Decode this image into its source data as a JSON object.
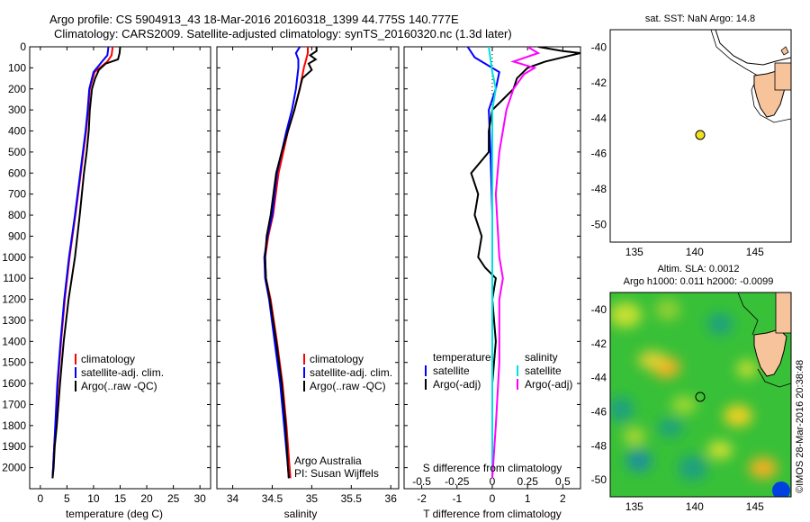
{
  "header": {
    "line1": "Argo profile: CS 5904913_43 18-Mar-2016 20160318_1399 44.775S 140.777E",
    "line2": "Climatology: CARS2009. Satellite-adjusted climatology: synTS_20160320.nc (1.3d later)"
  },
  "colors": {
    "climatology": "#ff0000",
    "satellite": "#0000ff",
    "argo": "#000000",
    "sat_salinity": "#00e0e0",
    "argo_salinity": "#ff00ff",
    "land": "#f7c39a",
    "marker": "#f0e020"
  },
  "chart_data": [
    {
      "type": "line",
      "panel": "temperature",
      "xlabel": "temperature (deg C)",
      "ylabel": "",
      "xlim": [
        -2,
        32
      ],
      "ylim": [
        2100,
        0
      ],
      "xticks": [
        0,
        5,
        10,
        15,
        20,
        25,
        30
      ],
      "yticks": [
        0,
        100,
        200,
        300,
        400,
        500,
        600,
        700,
        800,
        900,
        1000,
        1100,
        1200,
        1300,
        1400,
        1500,
        1600,
        1700,
        1800,
        1900,
        2000
      ],
      "legend": [
        "climatology",
        "satellite-adj. clim.",
        "Argo(..raw -QC)"
      ],
      "series": [
        {
          "name": "climatology",
          "color": "#ff0000",
          "x": [
            13.6,
            13.4,
            12.6,
            10.2,
            9.3,
            9.0,
            8.6,
            8.1,
            7.6,
            6.6,
            5.5,
            4.6,
            3.9,
            3.3,
            2.9,
            2.6,
            2.4,
            2.3
          ],
          "y": [
            0,
            40,
            70,
            120,
            200,
            300,
            400,
            500,
            600,
            800,
            1000,
            1200,
            1400,
            1600,
            1800,
            1900,
            2000,
            2050
          ]
        },
        {
          "name": "satellite-adj. clim.",
          "color": "#0000ff",
          "x": [
            12.8,
            12.6,
            11.6,
            10.0,
            9.2,
            8.9,
            8.5,
            8.0,
            7.5,
            6.5,
            5.4,
            4.5,
            3.8,
            3.2,
            2.8,
            2.6,
            2.4,
            2.3
          ],
          "y": [
            0,
            40,
            70,
            120,
            200,
            300,
            400,
            500,
            600,
            800,
            1000,
            1200,
            1400,
            1600,
            1800,
            1900,
            2000,
            2050
          ]
        },
        {
          "name": "Argo(..raw -QC)",
          "color": "#000000",
          "x": [
            15.0,
            14.9,
            14.6,
            12.3,
            11.0,
            10.3,
            9.7,
            9.3,
            9.1,
            8.7,
            8.2,
            7.4,
            6.5,
            5.3,
            4.4,
            3.7,
            3.1,
            2.7,
            2.5,
            2.3
          ],
          "y": [
            0,
            30,
            60,
            80,
            110,
            150,
            200,
            300,
            400,
            500,
            600,
            800,
            1000,
            1200,
            1400,
            1600,
            1800,
            1900,
            2000,
            2050
          ]
        }
      ]
    },
    {
      "type": "line",
      "panel": "salinity",
      "xlabel": "salinity",
      "xlim": [
        33.8,
        36.1
      ],
      "ylim": [
        2100,
        0
      ],
      "xticks": [
        34,
        34.5,
        35,
        35.5,
        36
      ],
      "legend": [
        "climatology",
        "satellite-adj. clim.",
        "Argo(..raw -QC)"
      ],
      "annotation": [
        "Argo Australia",
        "PI: Susan Wijffels"
      ],
      "series": [
        {
          "name": "climatology",
          "color": "#ff0000",
          "x": [
            34.95,
            34.95,
            34.93,
            34.9,
            34.85,
            34.78,
            34.7,
            34.64,
            34.58,
            34.51,
            34.45,
            34.41,
            34.42,
            34.48,
            34.56,
            34.63,
            34.68,
            34.72,
            34.73
          ],
          "y": [
            0,
            30,
            60,
            100,
            200,
            300,
            400,
            500,
            600,
            800,
            900,
            1000,
            1100,
            1200,
            1400,
            1600,
            1800,
            2000,
            2050
          ]
        },
        {
          "name": "satellite-adj. clim.",
          "color": "#0000ff",
          "x": [
            34.85,
            34.8,
            34.83,
            34.83,
            34.8,
            34.75,
            34.68,
            34.62,
            34.56,
            34.5,
            34.44,
            34.4,
            34.41,
            34.46,
            34.53,
            34.6,
            34.65,
            34.7,
            34.71
          ],
          "y": [
            0,
            30,
            60,
            100,
            200,
            300,
            400,
            500,
            600,
            800,
            900,
            1000,
            1100,
            1200,
            1400,
            1600,
            1800,
            2000,
            2050
          ]
        },
        {
          "name": "Argo(..raw -QC)",
          "color": "#000000",
          "x": [
            35.06,
            35.06,
            34.98,
            35.05,
            34.96,
            35.0,
            34.88,
            34.78,
            34.7,
            34.62,
            34.55,
            34.48,
            34.43,
            34.41,
            34.42,
            34.47,
            34.55,
            34.62,
            34.67,
            34.7,
            34.71
          ],
          "y": [
            0,
            20,
            40,
            60,
            80,
            110,
            150,
            300,
            400,
            500,
            600,
            800,
            900,
            1000,
            1100,
            1200,
            1400,
            1600,
            1800,
            2000,
            2050
          ]
        }
      ]
    },
    {
      "type": "line",
      "panel": "difference",
      "xlabel": "T difference from climatology",
      "toplabel": "S difference from climatology",
      "xlim": [
        -2.5,
        2.5
      ],
      "ylim": [
        2100,
        0
      ],
      "xticks": [
        -2,
        -1,
        0,
        1,
        2
      ],
      "topticks": [
        "-0.5",
        "-0.25",
        "0",
        "0.25",
        "0.5"
      ],
      "legend_left": [
        "temperature",
        "satellite",
        "Argo(-adj)"
      ],
      "legend_right": [
        "salinity",
        "satellite",
        "Argo(-adj)"
      ],
      "series": [
        {
          "name": "T satellite",
          "color": "#0000ff",
          "x": [
            -0.7,
            -0.5,
            0.2,
            0.1,
            -0.1,
            -0.05,
            0.0,
            0.0,
            0.0,
            0.0
          ],
          "y": [
            0,
            50,
            120,
            200,
            300,
            500,
            800,
            1200,
            1600,
            2050
          ]
        },
        {
          "name": "T Argo(-adj)",
          "color": "#000000",
          "x": [
            1.3,
            2.0,
            2.5,
            1.5,
            1.0,
            0.7,
            0.6,
            0.3,
            0.0,
            -0.1,
            -0.1,
            -0.6,
            -0.4,
            -0.5,
            -0.3,
            -0.4,
            -0.2,
            0.1,
            0.0,
            0.1,
            0.0,
            0.0
          ],
          "y": [
            0,
            20,
            30,
            70,
            100,
            150,
            200,
            250,
            300,
            400,
            500,
            600,
            700,
            800,
            900,
            1000,
            1050,
            1100,
            1200,
            1400,
            1600,
            2050
          ]
        },
        {
          "name": "S satellite",
          "color": "#00e0e0",
          "x": [
            -0.1,
            -0.05,
            0.0,
            0.1,
            0.0,
            0.0,
            0.0,
            0.0,
            0.0
          ],
          "y": [
            0,
            60,
            120,
            200,
            300,
            600,
            1000,
            1500,
            2050
          ]
        },
        {
          "name": "S Argo(-adj)",
          "color": "#ff00ff",
          "x": [
            1.0,
            1.3,
            0.6,
            1.2,
            0.9,
            0.6,
            0.4,
            0.2,
            0.1,
            0.2,
            0.3,
            0.2,
            0.2,
            0.1,
            0.0
          ],
          "y": [
            0,
            30,
            70,
            100,
            130,
            200,
            300,
            500,
            700,
            1000,
            1100,
            1200,
            1500,
            1800,
            2050
          ]
        }
      ]
    },
    {
      "type": "map",
      "panel": "sst",
      "title": "sat. SST: NaN Argo: 14.8",
      "xlim": [
        133,
        148
      ],
      "ylim": [
        -51,
        -39
      ],
      "xticks": [
        135,
        140,
        145
      ],
      "yticks": [
        -40,
        -42,
        -44,
        -46,
        -48,
        -50
      ],
      "point": {
        "lon": 140.777,
        "lat": -44.775
      }
    },
    {
      "type": "heatmap",
      "panel": "sla",
      "title": [
        "Altim. SLA: 0.0012",
        "Argo h1000: 0.011 h2000: -0.0099"
      ],
      "xlim": [
        133,
        148
      ],
      "ylim": [
        -51,
        -39
      ],
      "xticks": [
        135,
        140,
        145
      ],
      "yticks": [
        -40,
        -42,
        -44,
        -46,
        -48,
        -50
      ],
      "point": {
        "lon": 140.777,
        "lat": -44.775
      }
    }
  ],
  "watermark": "©IMOS 28-Mar-2016 20:38:48"
}
